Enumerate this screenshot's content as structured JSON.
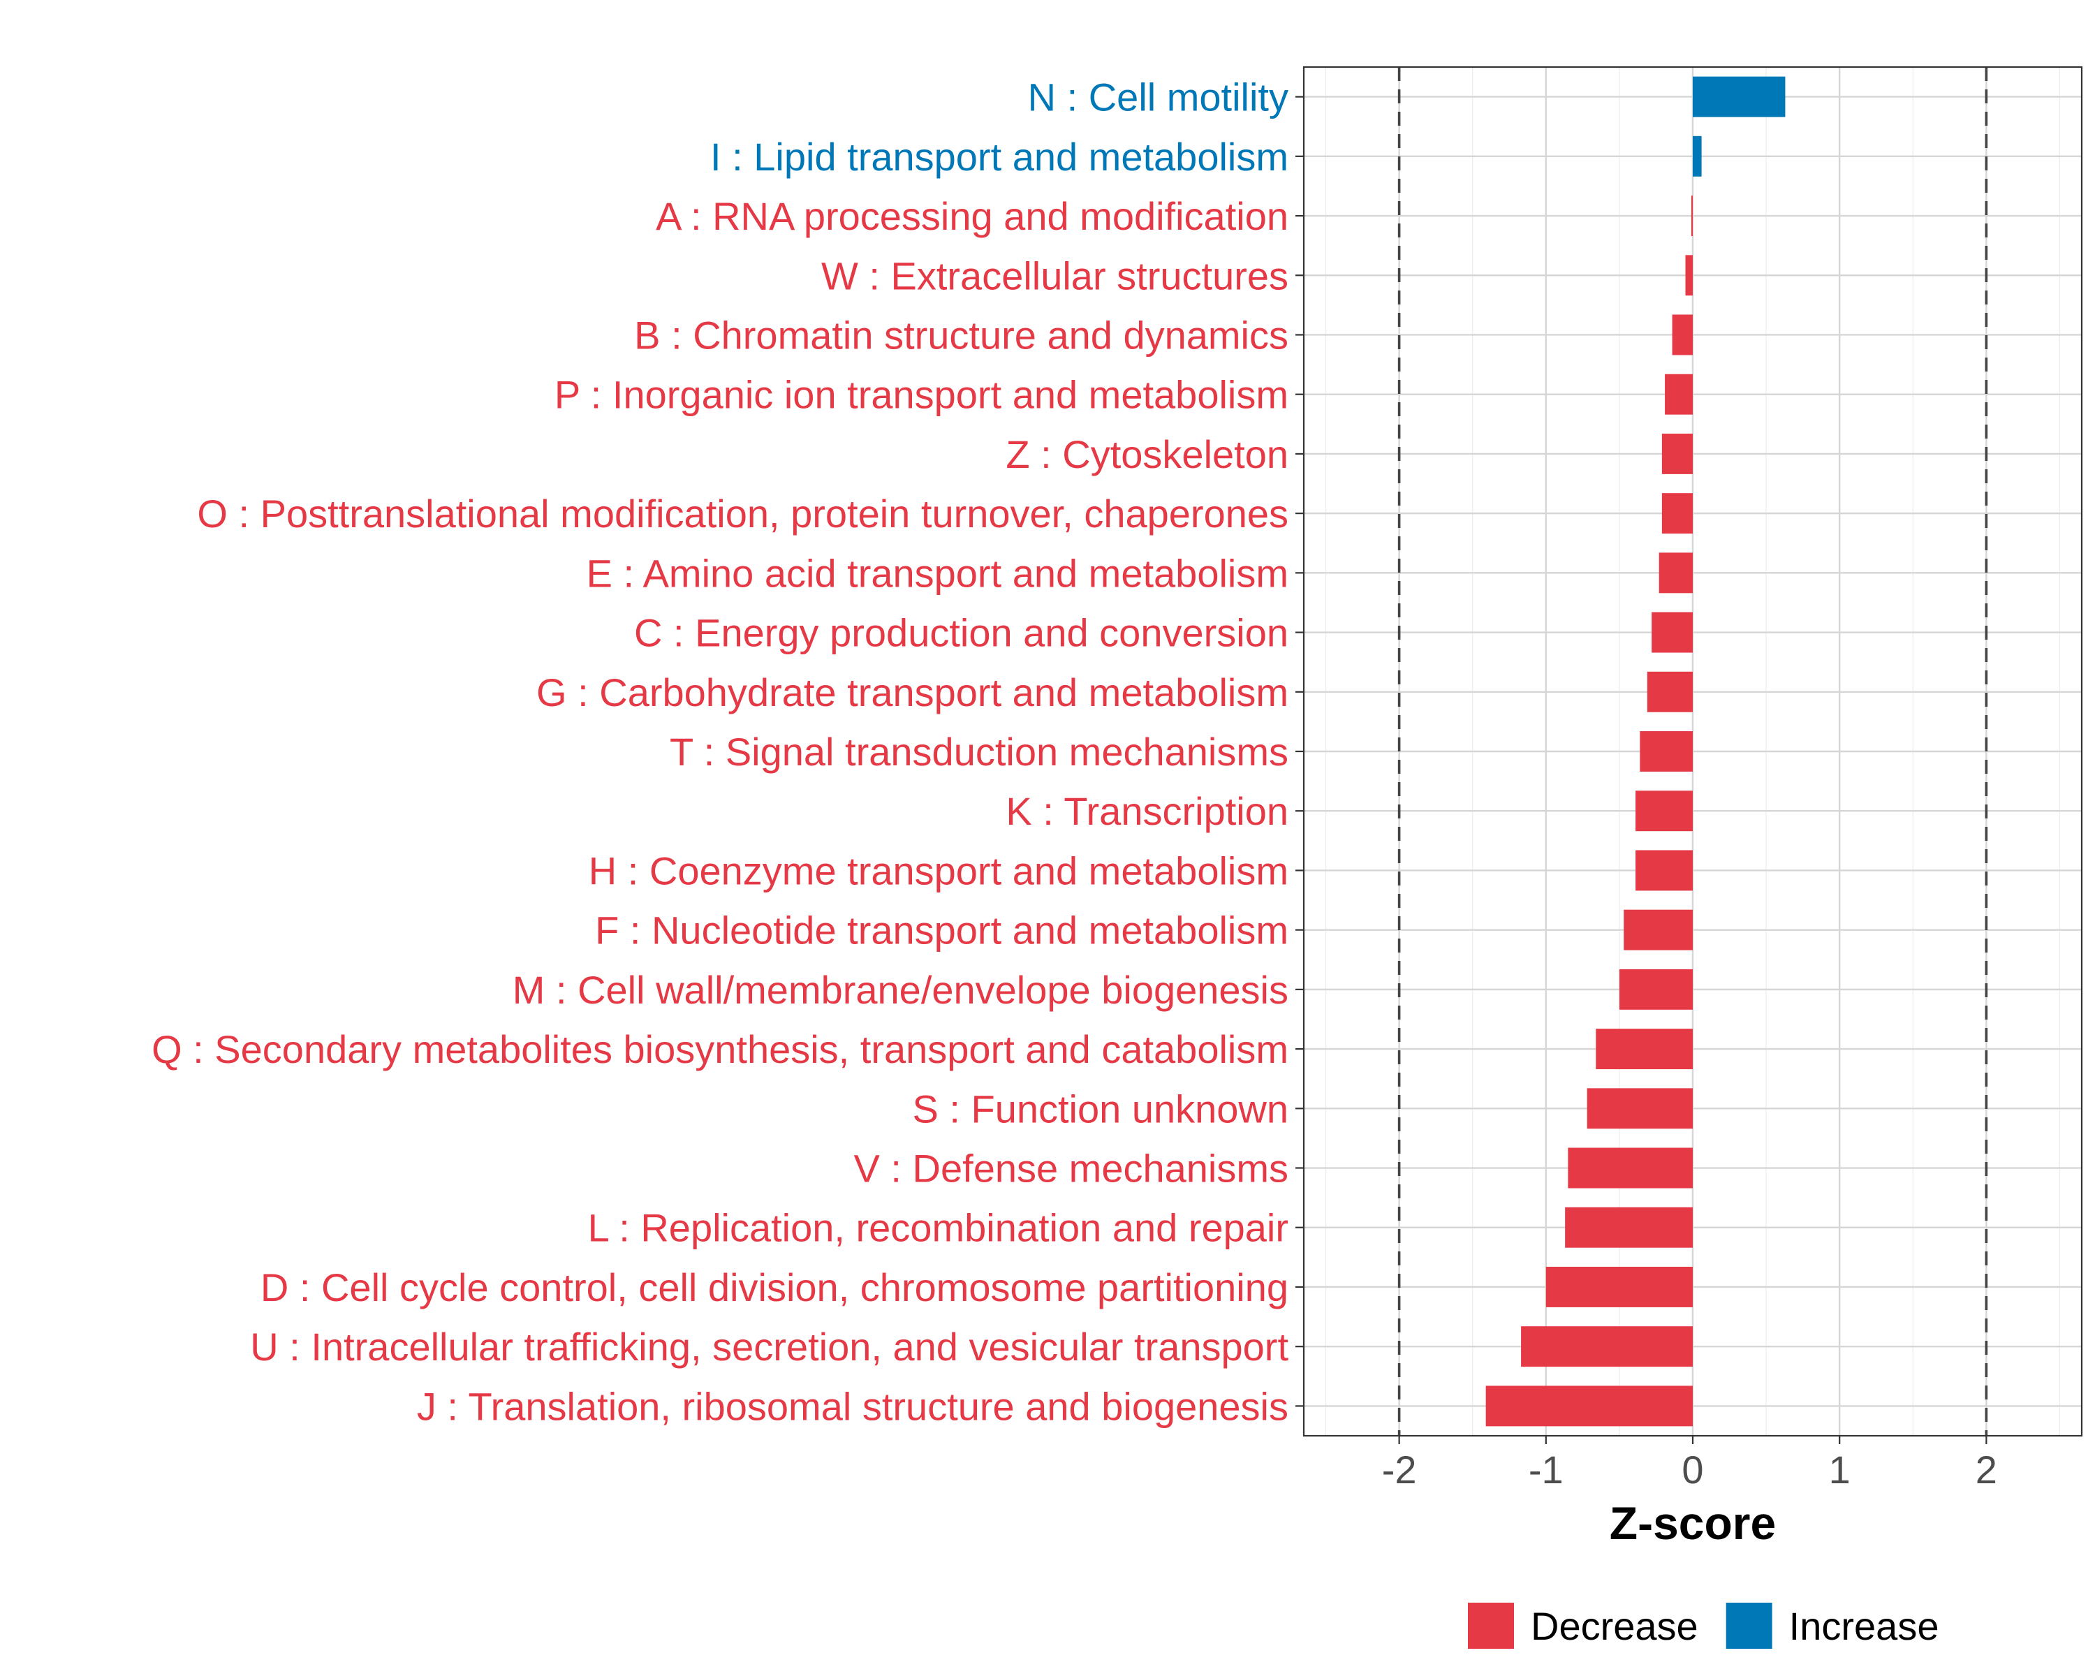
{
  "chart_data": {
    "type": "bar",
    "orientation": "horizontal",
    "title": "",
    "xlabel": "Z-score",
    "ylabel": "",
    "xlim": [
      -2.65,
      2.65
    ],
    "xticks": [
      -2,
      -1,
      0,
      1,
      2
    ],
    "xtick_labels": [
      "-2",
      "-1",
      "0",
      "1",
      "2"
    ],
    "threshold_lines": [
      -2,
      2
    ],
    "grid": true,
    "legend_position": "bottom",
    "legend": [
      {
        "name": "Decrease",
        "color": "#e63946"
      },
      {
        "name": "Increase",
        "color": "#0077b6"
      }
    ],
    "categories": [
      "N : Cell motility",
      "I : Lipid transport and metabolism",
      "A : RNA processing and modification",
      "W : Extracellular structures",
      "B : Chromatin structure and dynamics",
      "P : Inorganic ion transport and metabolism",
      "Z : Cytoskeleton",
      "O : Posttranslational modification, protein turnover, chaperones",
      "E : Amino acid transport and metabolism",
      "C : Energy production and conversion",
      "G : Carbohydrate transport and metabolism",
      "T : Signal transduction mechanisms",
      "K : Transcription",
      "H : Coenzyme transport and metabolism",
      "F : Nucleotide transport and metabolism",
      "M : Cell wall/membrane/envelope biogenesis",
      "Q : Secondary metabolites biosynthesis, transport and catabolism",
      "S : Function unknown",
      "V : Defense mechanisms",
      "L : Replication, recombination and repair",
      "D : Cell cycle control, cell division, chromosome partitioning",
      "U : Intracellular trafficking, secretion, and vesicular transport",
      "J : Translation, ribosomal structure and biogenesis"
    ],
    "values": [
      0.63,
      0.06,
      -0.01,
      -0.05,
      -0.14,
      -0.19,
      -0.21,
      -0.21,
      -0.23,
      -0.28,
      -0.31,
      -0.36,
      -0.39,
      -0.39,
      -0.47,
      -0.5,
      -0.66,
      -0.72,
      -0.85,
      -0.87,
      -1.0,
      -1.17,
      -1.41
    ],
    "groups": [
      "Increase",
      "Increase",
      "Decrease",
      "Decrease",
      "Decrease",
      "Decrease",
      "Decrease",
      "Decrease",
      "Decrease",
      "Decrease",
      "Decrease",
      "Decrease",
      "Decrease",
      "Decrease",
      "Decrease",
      "Decrease",
      "Decrease",
      "Decrease",
      "Decrease",
      "Decrease",
      "Decrease",
      "Decrease",
      "Decrease"
    ]
  }
}
